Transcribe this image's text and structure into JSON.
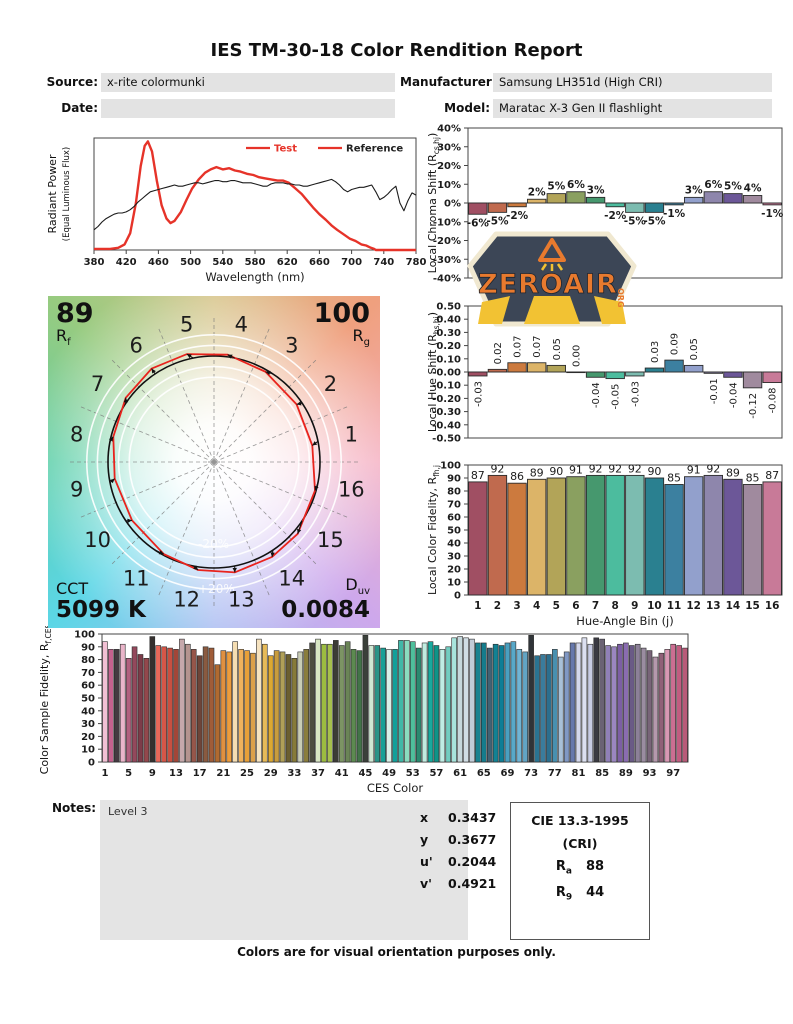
{
  "report": {
    "title": "IES TM-30-18 Color Rendition Report",
    "header": {
      "source_label": "Source:",
      "source_value": "x-rite colormunki",
      "date_label": "Date:",
      "date_value": "",
      "manufacturer_label": "Manufacturer:",
      "manufacturer_value": "Samsung LH351d (High CRI)",
      "model_label": "Model:",
      "model_value": "Maratac X-3 Gen II flashlight"
    },
    "notes": {
      "label": "Notes:",
      "value": "Level 3"
    },
    "chromaticity": {
      "rows": [
        {
          "label": "x",
          "value": "0.3437"
        },
        {
          "label": "y",
          "value": "0.3677"
        },
        {
          "label": "u'",
          "value": "0.2044"
        },
        {
          "label": "v'",
          "value": "0.4921"
        }
      ]
    },
    "cri": {
      "title": "CIE 13.3-1995",
      "subtitle": "(CRI)",
      "rows": [
        {
          "base": "R",
          "sub": "a",
          "value": "88"
        },
        {
          "base": "R",
          "sub": "9",
          "value": "44"
        }
      ]
    },
    "vector": {
      "rf": "89",
      "rf_base": "R",
      "rf_sub": "f",
      "rg": "100",
      "rg_base": "R",
      "rg_sub": "g",
      "cct_label": "CCT",
      "cct_value": "5099 K",
      "duv_base": "D",
      "duv_sub": "uv",
      "duv_value": "0.0084",
      "minus_label": "-20%",
      "plus_label": "+20%",
      "bin_labels": [
        1,
        2,
        3,
        4,
        5,
        6,
        7,
        8,
        9,
        10,
        11,
        12,
        13,
        14,
        15,
        16
      ],
      "test_color": "#e8231d",
      "reference_color": "#111111"
    },
    "footer": "Colors are for visual orientation purposes only."
  },
  "logo": {
    "brand": "ZEROAIR",
    "org": "ORG",
    "badge_color": "#3c4656",
    "accent": "#e87a2e",
    "beam": "#f2c233",
    "rim": "#f0e8d0"
  },
  "hue_bin_colors": [
    "#a04f63",
    "#c06a4e",
    "#cc7a3e",
    "#dcb468",
    "#b2a458",
    "#8aa060",
    "#46986e",
    "#4cbc9e",
    "#7cbcb0",
    "#2a8090",
    "#3c80a0",
    "#92a0cc",
    "#8e86ac",
    "#6c5798",
    "#a08a9e",
    "#c87a98"
  ],
  "chart_data": [
    {
      "id": "spd",
      "type": "line",
      "title": "",
      "xlabel": "Wavelength (nm)",
      "ylabel_lines": [
        "Radiant Power",
        "(Equal Luminous Flux)"
      ],
      "xlim": [
        380,
        780
      ],
      "xtick_step": 40,
      "ylim": [
        0,
        1
      ],
      "legend": [
        {
          "label": "Test",
          "line_color": "#e63329",
          "text_color": "#e63329"
        },
        {
          "label": "Reference",
          "line_color": "#e63329",
          "text_color": "#222222"
        }
      ],
      "series": [
        {
          "name": "Test",
          "color": "#e63329",
          "width": 2.4,
          "points": [
            [
              380,
              0.01
            ],
            [
              400,
              0.01
            ],
            [
              410,
              0.02
            ],
            [
              418,
              0.05
            ],
            [
              425,
              0.15
            ],
            [
              432,
              0.42
            ],
            [
              438,
              0.75
            ],
            [
              443,
              0.93
            ],
            [
              447,
              0.97
            ],
            [
              452,
              0.88
            ],
            [
              458,
              0.62
            ],
            [
              464,
              0.4
            ],
            [
              470,
              0.28
            ],
            [
              475,
              0.24
            ],
            [
              480,
              0.26
            ],
            [
              488,
              0.34
            ],
            [
              495,
              0.45
            ],
            [
              502,
              0.55
            ],
            [
              510,
              0.63
            ],
            [
              518,
              0.69
            ],
            [
              525,
              0.72
            ],
            [
              532,
              0.74
            ],
            [
              540,
              0.72
            ],
            [
              548,
              0.73
            ],
            [
              555,
              0.71
            ],
            [
              562,
              0.7
            ],
            [
              570,
              0.68
            ],
            [
              578,
              0.67
            ],
            [
              585,
              0.65
            ],
            [
              592,
              0.64
            ],
            [
              600,
              0.63
            ],
            [
              608,
              0.62
            ],
            [
              615,
              0.62
            ],
            [
              622,
              0.6
            ],
            [
              630,
              0.55
            ],
            [
              638,
              0.5
            ],
            [
              645,
              0.44
            ],
            [
              652,
              0.38
            ],
            [
              660,
              0.32
            ],
            [
              668,
              0.27
            ],
            [
              675,
              0.22
            ],
            [
              682,
              0.18
            ],
            [
              690,
              0.14
            ],
            [
              698,
              0.1
            ],
            [
              705,
              0.08
            ],
            [
              712,
              0.05
            ],
            [
              718,
              0.04
            ],
            [
              724,
              0.02
            ],
            [
              728,
              0.01
            ],
            [
              730,
              0
            ],
            [
              780,
              0
            ]
          ]
        },
        {
          "name": "Reference",
          "color": "#1c1c1c",
          "width": 1.1,
          "points": [
            [
              380,
              0.18
            ],
            [
              385,
              0.21
            ],
            [
              390,
              0.25
            ],
            [
              395,
              0.28
            ],
            [
              400,
              0.3
            ],
            [
              405,
              0.32
            ],
            [
              410,
              0.33
            ],
            [
              415,
              0.33
            ],
            [
              420,
              0.34
            ],
            [
              425,
              0.36
            ],
            [
              430,
              0.39
            ],
            [
              435,
              0.43
            ],
            [
              440,
              0.46
            ],
            [
              445,
              0.49
            ],
            [
              450,
              0.52
            ],
            [
              455,
              0.53
            ],
            [
              460,
              0.54
            ],
            [
              465,
              0.55
            ],
            [
              470,
              0.56
            ],
            [
              475,
              0.57
            ],
            [
              480,
              0.58
            ],
            [
              485,
              0.57
            ],
            [
              490,
              0.57
            ],
            [
              495,
              0.58
            ],
            [
              500,
              0.59
            ],
            [
              505,
              0.6
            ],
            [
              510,
              0.6
            ],
            [
              515,
              0.59
            ],
            [
              520,
              0.6
            ],
            [
              525,
              0.61
            ],
            [
              530,
              0.62
            ],
            [
              535,
              0.62
            ],
            [
              540,
              0.61
            ],
            [
              545,
              0.61
            ],
            [
              550,
              0.62
            ],
            [
              555,
              0.62
            ],
            [
              560,
              0.61
            ],
            [
              565,
              0.6
            ],
            [
              570,
              0.6
            ],
            [
              575,
              0.6
            ],
            [
              580,
              0.59
            ],
            [
              585,
              0.58
            ],
            [
              590,
              0.57
            ],
            [
              595,
              0.57
            ],
            [
              600,
              0.59
            ],
            [
              605,
              0.6
            ],
            [
              610,
              0.6
            ],
            [
              615,
              0.6
            ],
            [
              620,
              0.59
            ],
            [
              625,
              0.59
            ],
            [
              630,
              0.58
            ],
            [
              635,
              0.58
            ],
            [
              640,
              0.57
            ],
            [
              645,
              0.57
            ],
            [
              650,
              0.58
            ],
            [
              655,
              0.59
            ],
            [
              660,
              0.6
            ],
            [
              665,
              0.61
            ],
            [
              670,
              0.62
            ],
            [
              675,
              0.63
            ],
            [
              680,
              0.61
            ],
            [
              685,
              0.58
            ],
            [
              690,
              0.54
            ],
            [
              695,
              0.52
            ],
            [
              700,
              0.54
            ],
            [
              705,
              0.55
            ],
            [
              710,
              0.56
            ],
            [
              715,
              0.56
            ],
            [
              720,
              0.57
            ],
            [
              725,
              0.58
            ],
            [
              730,
              0.52
            ],
            [
              735,
              0.45
            ],
            [
              740,
              0.47
            ],
            [
              745,
              0.5
            ],
            [
              750,
              0.54
            ],
            [
              755,
              0.57
            ],
            [
              760,
              0.42
            ],
            [
              765,
              0.35
            ],
            [
              770,
              0.44
            ],
            [
              775,
              0.51
            ],
            [
              780,
              0.49
            ]
          ]
        }
      ]
    },
    {
      "id": "chroma_shift",
      "type": "bar",
      "ylabel": [
        {
          "t": "Local Chroma Shift (R"
        },
        {
          "t": "cs,hj",
          "sub": true
        },
        {
          "t": ")"
        }
      ],
      "ylim": [
        -40,
        40
      ],
      "ytick_step": 10,
      "ytick_suffix": "%",
      "label_suffix": "%",
      "values": [
        -6,
        -5,
        -2,
        2,
        5,
        6,
        3,
        -2,
        -5,
        -5,
        -1,
        3,
        6,
        5,
        4,
        -1
      ]
    },
    {
      "id": "hue_shift",
      "type": "bar",
      "ylabel": [
        {
          "t": "Local Hue Shift (R"
        },
        {
          "t": "hs,hj",
          "sub": true
        },
        {
          "t": ")"
        }
      ],
      "ylim": [
        -0.5,
        0.5
      ],
      "ytick_step": 0.1,
      "decimals": 2,
      "rot_labels": true,
      "values": [
        -0.03,
        0.02,
        0.07,
        0.07,
        0.05,
        0.0,
        -0.04,
        -0.05,
        -0.03,
        0.03,
        0.09,
        0.05,
        -0.01,
        -0.04,
        -0.12,
        -0.08
      ]
    },
    {
      "id": "local_fidelity",
      "type": "bar",
      "xlabel": "Hue-Angle Bin (j)",
      "ylabel": [
        {
          "t": "Local Color Fidelity, R"
        },
        {
          "t": "fh,j",
          "sub": true
        }
      ],
      "ylim": [
        0,
        100
      ],
      "ytick_step": 10,
      "show_labels": true,
      "categories": [
        1,
        2,
        3,
        4,
        5,
        6,
        7,
        8,
        9,
        10,
        11,
        12,
        13,
        14,
        15,
        16
      ],
      "values": [
        87,
        92,
        86,
        89,
        90,
        91,
        92,
        92,
        92,
        90,
        85,
        91,
        92,
        89,
        85,
        87
      ]
    },
    {
      "id": "ces_fidelity",
      "type": "bar",
      "xlabel": "CES Color",
      "ylabel": [
        {
          "t": "Color Sample Fidelity, R"
        },
        {
          "t": "f,CESi",
          "sub": true
        }
      ],
      "ylim": [
        0,
        100
      ],
      "ytick_step": 10,
      "xticks": [
        1,
        5,
        9,
        13,
        17,
        21,
        25,
        29,
        33,
        37,
        41,
        45,
        49,
        53,
        57,
        61,
        65,
        69,
        73,
        77,
        81,
        85,
        89,
        93,
        97
      ],
      "values": [
        94,
        88,
        88,
        92,
        81,
        90,
        84,
        81,
        98,
        91,
        90,
        89,
        88,
        96,
        92,
        88,
        83,
        90,
        89,
        76,
        87,
        86,
        94,
        88,
        87,
        85,
        96,
        92,
        83,
        87,
        86,
        84,
        81,
        86,
        88,
        93,
        96,
        92,
        92,
        95,
        91,
        94,
        88,
        87,
        99,
        91,
        91,
        89,
        88,
        88,
        95,
        95,
        94,
        89,
        93,
        94,
        91,
        88,
        90,
        97,
        98,
        97,
        96,
        93,
        93,
        89,
        92,
        91,
        93,
        94,
        88,
        86,
        99,
        83,
        84,
        84,
        88,
        82,
        86,
        93,
        93,
        97,
        92,
        97,
        96,
        91,
        90,
        92,
        93,
        91,
        92,
        89,
        87,
        82,
        85,
        88,
        92,
        91,
        89
      ],
      "colors": [
        "#f2c0d4",
        "#c4618e",
        "#443a41",
        "#eab5ca",
        "#b2607e",
        "#94485c",
        "#7d3b49",
        "#93474c",
        "#35302f",
        "#e8685a",
        "#d55648",
        "#c94f40",
        "#a34638",
        "#c6a8ab",
        "#b5948f",
        "#96564a",
        "#6e4438",
        "#8a5a40",
        "#a05c38",
        "#b06a30",
        "#e09040",
        "#ec9c3c",
        "#f4ddb2",
        "#f0b25c",
        "#e8a038",
        "#dca04a",
        "#f6e3c0",
        "#e6ba58",
        "#dca832",
        "#c89c3e",
        "#b0a058",
        "#6b5f30",
        "#867a38",
        "#c8ccb4",
        "#8a7d3c",
        "#4c4c40",
        "#d8e6c4",
        "#9cbc40",
        "#a6c04c",
        "#3c3c36",
        "#7c9464",
        "#6a8456",
        "#5c8a50",
        "#427448",
        "#3a403a",
        "#d0e8d4",
        "#2a9488",
        "#18a096",
        "#daf0e8",
        "#12a09a",
        "#40b8a8",
        "#8adcc0",
        "#4ec09c",
        "#2a8a70",
        "#c2ece0",
        "#18aa9e",
        "#0e9488",
        "#bfece4",
        "#72ccc0",
        "#a8e4dc",
        "#c6d8dc",
        "#d0dde4",
        "#c2ccd8",
        "#1a8290",
        "#157c8c",
        "#406274",
        "#128294",
        "#0e7e96",
        "#4aa0c0",
        "#58a8c8",
        "#70b4d4",
        "#62a4c4",
        "#303438",
        "#2a7492",
        "#3a7c9c",
        "#2b6f8e",
        "#4890b0",
        "#a8c0d8",
        "#8098c4",
        "#6678ac",
        "#d4d8ec",
        "#dce0f0",
        "#c8cce4",
        "#3a3a42",
        "#6a6274",
        "#9080b8",
        "#9a86c0",
        "#7c5ea4",
        "#8a6cb0",
        "#6a5a86",
        "#8c8098",
        "#9a8ca0",
        "#786478",
        "#b498ac",
        "#906078",
        "#d898b4",
        "#cc6e92",
        "#c25c80",
        "#b85a78"
      ]
    }
  ]
}
